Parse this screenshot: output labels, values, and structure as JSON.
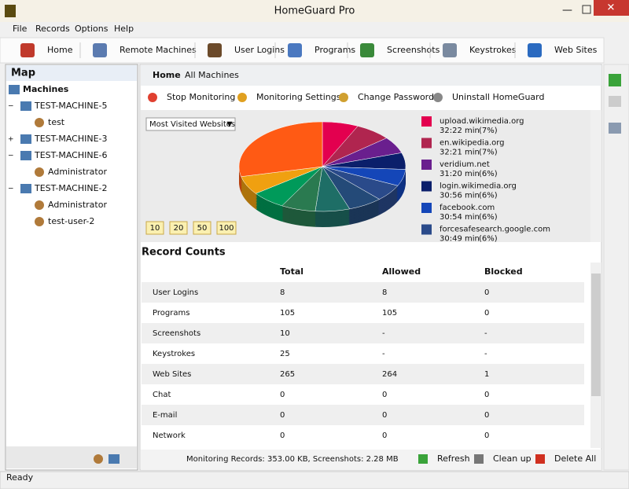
{
  "window": {
    "title": "HomeGuard Pro"
  },
  "menu": [
    "File",
    "Records",
    "Options",
    "Help"
  ],
  "toolbar": [
    "Home",
    "Remote Machines",
    "User Logins",
    "Programs",
    "Screenshots",
    "Keystrokes",
    "Web Sites"
  ],
  "map": {
    "title": "Map",
    "root": "Machines",
    "machines": [
      {
        "name": "TEST-MACHINE-5",
        "users": [
          "test"
        ]
      },
      {
        "name": "TEST-MACHINE-3",
        "users": []
      },
      {
        "name": "TEST-MACHINE-6",
        "users": [
          "Administrator"
        ]
      },
      {
        "name": "TEST-MACHINE-2",
        "users": [
          "Administrator",
          "test-user-2"
        ]
      }
    ]
  },
  "breadcrumb": [
    "Home",
    "All Machines"
  ],
  "actions": [
    "Stop Monitoring",
    "Monitoring Settings",
    "Change Password",
    "Uninstall HomeGuard"
  ],
  "pie": {
    "selector": "Most Visited Websites",
    "limits": [
      "10",
      "20",
      "50",
      "100"
    ],
    "items": [
      {
        "name": "upload.wikimedia.org",
        "time": "32:22 min",
        "percent": 7,
        "percent_label": "(7%)",
        "color": "#e3004f"
      },
      {
        "name": "en.wikipedia.org",
        "time": "32:21 min",
        "percent": 7,
        "percent_label": "(7%)",
        "color": "#b0254f"
      },
      {
        "name": "veridium.net",
        "time": "31:20 min",
        "percent": 6,
        "percent_label": "(6%)",
        "color": "#6a1f8e"
      },
      {
        "name": "login.wikimedia.org",
        "time": "30:56 min",
        "percent": 6,
        "percent_label": "(6%)",
        "color": "#0b1f6b"
      },
      {
        "name": "facebook.com",
        "time": "30:54 min",
        "percent": 6,
        "percent_label": "(6%)",
        "color": "#1446b8"
      },
      {
        "name": "forcesafesearch.google.com",
        "time": "30:49 min",
        "percent": 6,
        "percent_label": "(6%)",
        "color": "#2a4a8a"
      }
    ]
  },
  "record_counts": {
    "title": "Record Counts",
    "columns": [
      "Total",
      "Allowed",
      "Blocked"
    ],
    "rows": [
      [
        "User Logins",
        "8",
        "8",
        "0"
      ],
      [
        "Programs",
        "105",
        "105",
        "0"
      ],
      [
        "Screenshots",
        "10",
        "-",
        "-"
      ],
      [
        "Keystrokes",
        "25",
        "-",
        "-"
      ],
      [
        "Web Sites",
        "265",
        "264",
        "1"
      ],
      [
        "Chat",
        "0",
        "0",
        "0"
      ],
      [
        "E-mail",
        "0",
        "0",
        "0"
      ],
      [
        "Network",
        "0",
        "0",
        "0"
      ]
    ]
  },
  "footer": {
    "summary": "Monitoring Records: 353.00 KB, Screenshots: 2.28 MB",
    "buttons": [
      "Refresh",
      "Clean up",
      "Delete All"
    ]
  },
  "status": "Ready"
}
